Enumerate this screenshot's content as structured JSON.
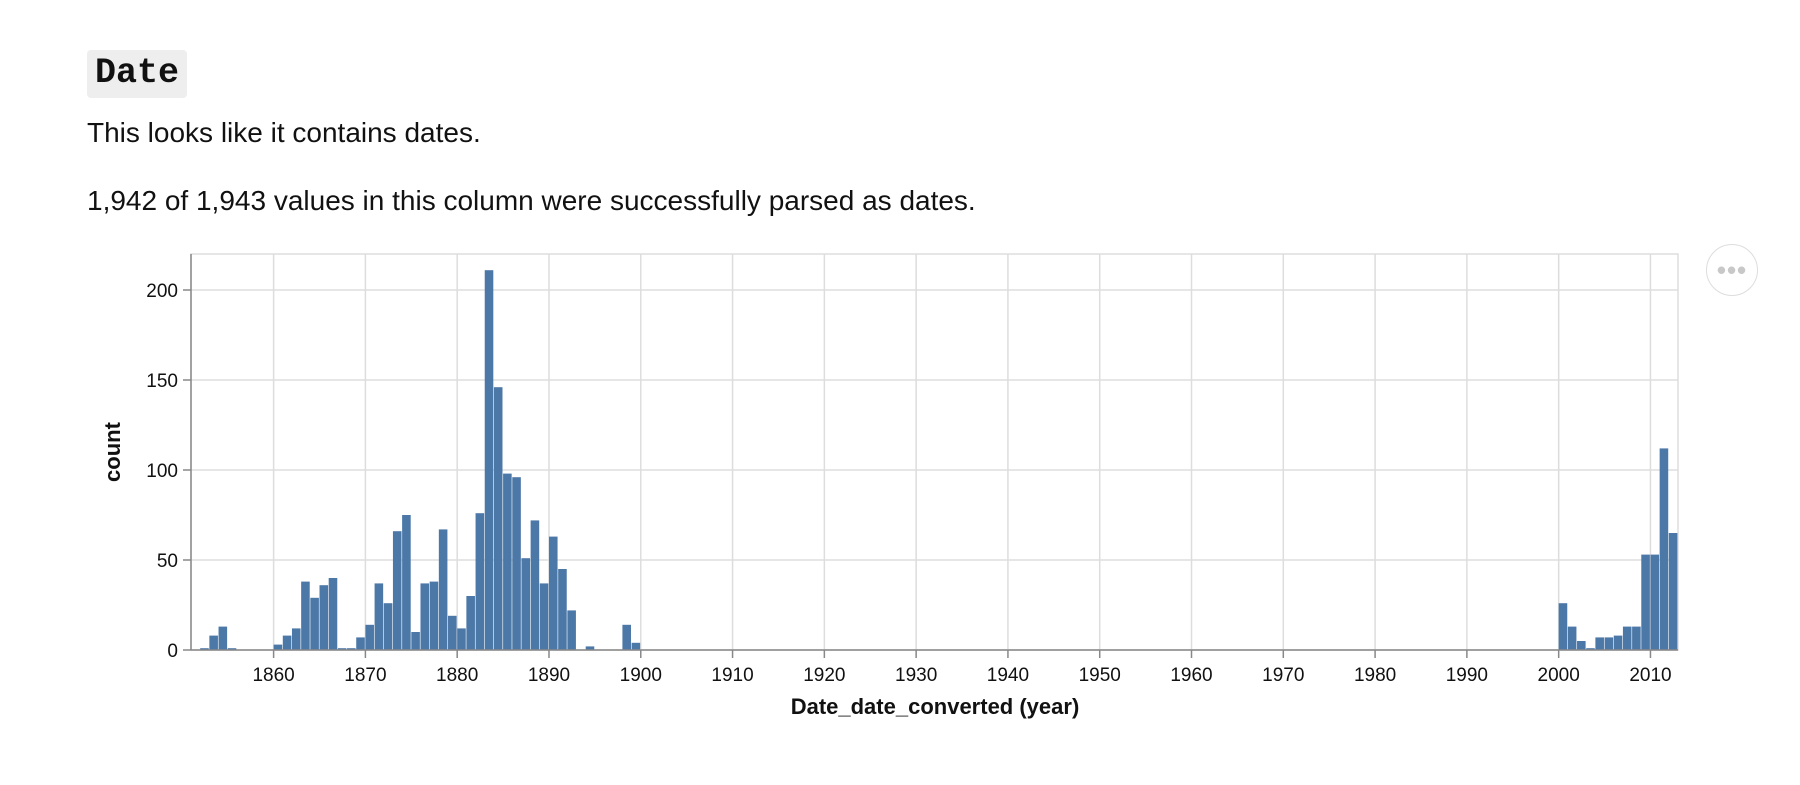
{
  "section": {
    "title": "Date",
    "desc1": "This looks like it contains dates.",
    "desc2": "1,942 of 1,943 values in this column were successfully parsed as dates."
  },
  "actions_menu": {
    "icon": "ellipsis-icon",
    "glyph": "•••"
  },
  "chart_data": {
    "type": "bar",
    "xlabel": "Date_date_converted (year)",
    "ylabel": "count",
    "xlim": [
      1851,
      2013
    ],
    "ylim": [
      0,
      220
    ],
    "x_ticks": [
      1860,
      1870,
      1880,
      1890,
      1900,
      1910,
      1920,
      1930,
      1940,
      1950,
      1960,
      1970,
      1980,
      1990,
      2000,
      2010
    ],
    "y_ticks": [
      0,
      50,
      100,
      150,
      200
    ],
    "grid": true,
    "bar_color": "#4c78a8",
    "x": [
      1852,
      1853,
      1854,
      1855,
      1860,
      1861,
      1862,
      1863,
      1864,
      1865,
      1866,
      1867,
      1868,
      1869,
      1870,
      1871,
      1872,
      1873,
      1874,
      1875,
      1876,
      1877,
      1878,
      1879,
      1880,
      1881,
      1882,
      1883,
      1884,
      1885,
      1886,
      1887,
      1888,
      1889,
      1890,
      1891,
      1892,
      1894,
      1898,
      1899,
      2000,
      2001,
      2002,
      2003,
      2004,
      2005,
      2006,
      2007,
      2008,
      2009,
      2010,
      2011,
      2012
    ],
    "values": [
      1,
      8,
      13,
      1,
      3,
      8,
      12,
      38,
      29,
      36,
      40,
      1,
      1,
      7,
      14,
      37,
      26,
      66,
      75,
      10,
      37,
      38,
      67,
      19,
      12,
      30,
      76,
      211,
      146,
      98,
      96,
      51,
      72,
      37,
      63,
      45,
      22,
      2,
      14,
      4,
      26,
      13,
      5,
      1,
      7,
      7,
      8,
      13,
      13,
      53,
      53,
      112,
      65
    ]
  }
}
